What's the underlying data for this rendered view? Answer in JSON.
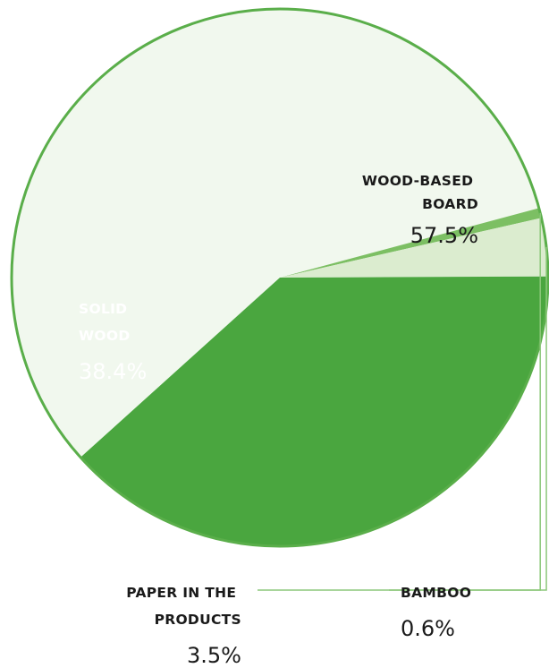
{
  "chart_data": {
    "type": "pie",
    "title": "",
    "slices": [
      {
        "label_lines": [
          "WOOD-BASED",
          "BOARD"
        ],
        "value": 57.5,
        "value_label": "57.5%",
        "color": "#f1f8ee"
      },
      {
        "label_lines": [
          "BAMBOO"
        ],
        "value": 0.6,
        "value_label": "0.6%",
        "color": "#7cbf63"
      },
      {
        "label_lines": [
          "PAPER IN THE",
          "PRODUCTS"
        ],
        "value": 3.5,
        "value_label": "3.5%",
        "color": "#dbeccf"
      },
      {
        "label_lines": [
          "SOLID",
          "WOOD"
        ],
        "value": 38.4,
        "value_label": "38.4%",
        "color": "#4aa63f"
      }
    ],
    "colors": {
      "outline": "#5aae4a",
      "leader_line": "#8cc77a",
      "dark_text": "#1a1a1a",
      "light_text": "#ffffff"
    }
  }
}
